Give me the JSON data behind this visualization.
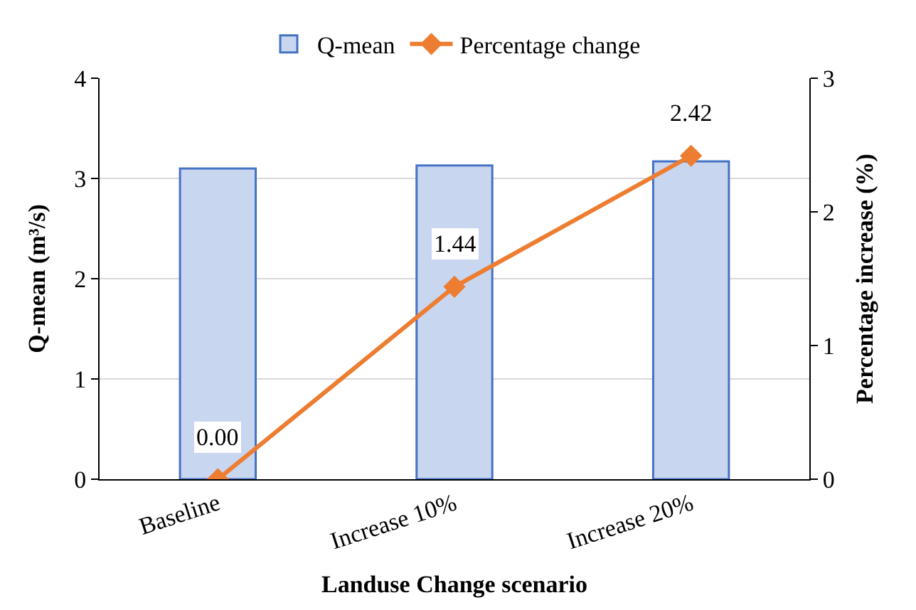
{
  "chart_data": {
    "type": "bar",
    "xlabel": "Landuse Change scenario",
    "ylabel": "Q-mean (m³/s)",
    "y2label": "Percentage increase (%)",
    "categories": [
      "Baseline",
      "Increase 10%",
      "Increase 20%"
    ],
    "series": [
      {
        "name": "Q-mean",
        "color": "#c9d6ef",
        "values": [
          3.1,
          3.13,
          3.17
        ]
      },
      {
        "name": "Percentage change",
        "type": "line",
        "axis": "y2",
        "color": "#ed7d31",
        "marker": "diamond",
        "values": [
          0.0,
          1.44,
          2.42
        ],
        "value_labels": [
          "0.00",
          "1.44",
          "2.42"
        ]
      }
    ],
    "ylim": [
      0,
      4
    ],
    "yticks": [
      0,
      1,
      2,
      3,
      4
    ],
    "y2lim": [
      0,
      3
    ],
    "y2ticks": [
      0,
      1,
      2,
      3
    ],
    "grid": "y",
    "legend": "top"
  }
}
